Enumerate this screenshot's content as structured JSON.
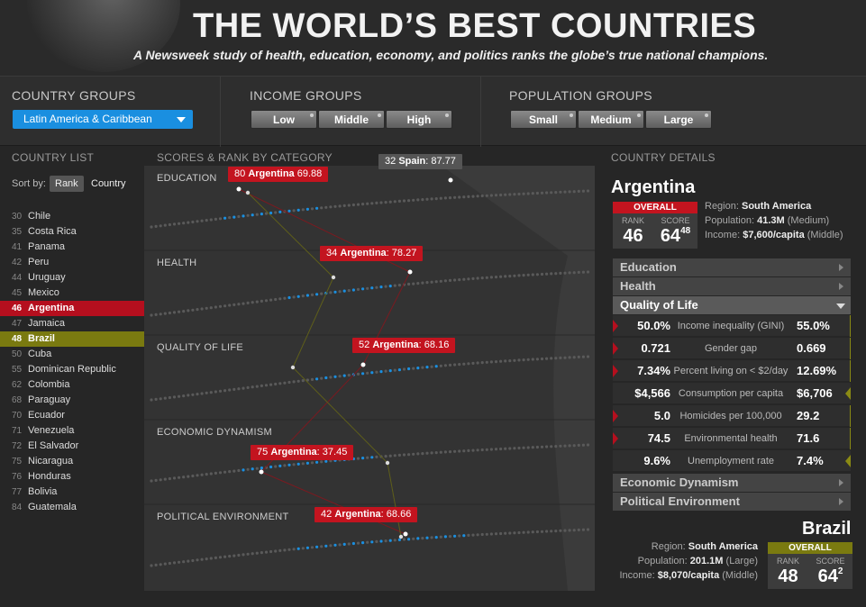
{
  "header": {
    "title": "THE WORLD’S BEST COUNTRIES",
    "subtitle": "A Newsweek study of health, education, economy, and politics ranks the globe’s true national champions."
  },
  "filters": {
    "country_groups": {
      "label": "COUNTRY GROUPS",
      "selected": "Latin America & Caribbean"
    },
    "income_groups": {
      "label": "INCOME GROUPS",
      "options": [
        "Low",
        "Middle",
        "High"
      ]
    },
    "population_groups": {
      "label": "POPULATION GROUPS",
      "options": [
        "Small",
        "Medium",
        "Large"
      ]
    }
  },
  "country_list": {
    "heading": "COUNTRY LIST",
    "sort_label": "Sort by:",
    "sort_options": [
      "Rank",
      "Country"
    ],
    "items": [
      {
        "rank": "30",
        "name": "Chile",
        "state": ""
      },
      {
        "rank": "35",
        "name": "Costa Rica",
        "state": ""
      },
      {
        "rank": "41",
        "name": "Panama",
        "state": ""
      },
      {
        "rank": "42",
        "name": "Peru",
        "state": ""
      },
      {
        "rank": "44",
        "name": "Uruguay",
        "state": ""
      },
      {
        "rank": "45",
        "name": "Mexico",
        "state": ""
      },
      {
        "rank": "46",
        "name": "Argentina",
        "state": "red"
      },
      {
        "rank": "47",
        "name": "Jamaica",
        "state": ""
      },
      {
        "rank": "48",
        "name": "Brazil",
        "state": "olive"
      },
      {
        "rank": "50",
        "name": "Cuba",
        "state": ""
      },
      {
        "rank": "55",
        "name": "Dominican Republic",
        "state": ""
      },
      {
        "rank": "62",
        "name": "Colombia",
        "state": ""
      },
      {
        "rank": "68",
        "name": "Paraguay",
        "state": ""
      },
      {
        "rank": "70",
        "name": "Ecuador",
        "state": ""
      },
      {
        "rank": "71",
        "name": "Venezuela",
        "state": ""
      },
      {
        "rank": "72",
        "name": "El Salvador",
        "state": ""
      },
      {
        "rank": "75",
        "name": "Nicaragua",
        "state": ""
      },
      {
        "rank": "76",
        "name": "Honduras",
        "state": ""
      },
      {
        "rank": "77",
        "name": "Bolivia",
        "state": ""
      },
      {
        "rank": "84",
        "name": "Guatemala",
        "state": ""
      }
    ]
  },
  "chart": {
    "heading": "SCORES & RANK BY CATEGORY",
    "categories": [
      {
        "label": "EDUCATION",
        "tip_rank": "80",
        "tip_country": "Argentina",
        "tip_score": "69.88"
      },
      {
        "label": "HEALTH",
        "tip_rank": "34",
        "tip_country": "Argentina",
        "tip_score": "78.27"
      },
      {
        "label": "QUALITY OF LIFE",
        "tip_rank": "52",
        "tip_country": "Argentina",
        "tip_score": "68.16"
      },
      {
        "label": "ECONOMIC DYNAMISM",
        "tip_rank": "75",
        "tip_country": "Argentina",
        "tip_score": "37.45"
      },
      {
        "label": "POLITICAL ENVIRONMENT",
        "tip_rank": "42",
        "tip_country": "Argentina",
        "tip_score": "68.66"
      }
    ],
    "hover_tip": {
      "rank": "32",
      "country": "Spain",
      "score": "87.77"
    }
  },
  "details": {
    "heading": "COUNTRY DETAILS",
    "primary": {
      "name": "Argentina",
      "overall_label": "OVERALL",
      "rank_label": "RANK",
      "score_label": "SCORE",
      "rank": "46",
      "score": "64",
      "score_dec": "48",
      "region_label": "Region:",
      "region": "South America",
      "population_label": "Population:",
      "population": "41.3M",
      "population_group": "(Medium)",
      "income_label": "Income:",
      "income": "$7,600/capita",
      "income_group": "(Middle)"
    },
    "accordion": [
      "Education",
      "Health",
      "Quality of Life",
      "Economic Dynamism",
      "Political Environment"
    ],
    "quality_rows": [
      {
        "left": "50.0%",
        "metric": "Income inequality (GINI)",
        "right": "55.0%",
        "lmark": true,
        "rmark": false
      },
      {
        "left": "0.721",
        "metric": "Gender gap",
        "right": "0.669",
        "lmark": true,
        "rmark": false
      },
      {
        "left": "7.34%",
        "metric": "Percent living on < $2/day",
        "right": "12.69%",
        "lmark": true,
        "rmark": false
      },
      {
        "left": "$4,566",
        "metric": "Consumption per capita",
        "right": "$6,706",
        "lmark": false,
        "rmark": true
      },
      {
        "left": "5.0",
        "metric": "Homicides per 100,000",
        "right": "29.2",
        "lmark": true,
        "rmark": false
      },
      {
        "left": "74.5",
        "metric": "Environmental health",
        "right": "71.6",
        "lmark": true,
        "rmark": false
      },
      {
        "left": "9.6%",
        "metric": "Unemployment rate",
        "right": "7.4%",
        "lmark": false,
        "rmark": true
      }
    ],
    "secondary": {
      "name": "Brazil",
      "overall_label": "OVERALL",
      "rank_label": "RANK",
      "score_label": "SCORE",
      "rank": "48",
      "score": "64",
      "score_dec": "2",
      "region_label": "Region:",
      "region": "South America",
      "population_label": "Population:",
      "population": "201.1M",
      "population_group": "(Large)",
      "income_label": "Income:",
      "income": "$8,070/capita",
      "income_group": "(Middle)"
    }
  },
  "colors": {
    "argentina": "#c3141f",
    "brazil": "#7a7a10",
    "highlight_dot": "#1a8fe0"
  }
}
